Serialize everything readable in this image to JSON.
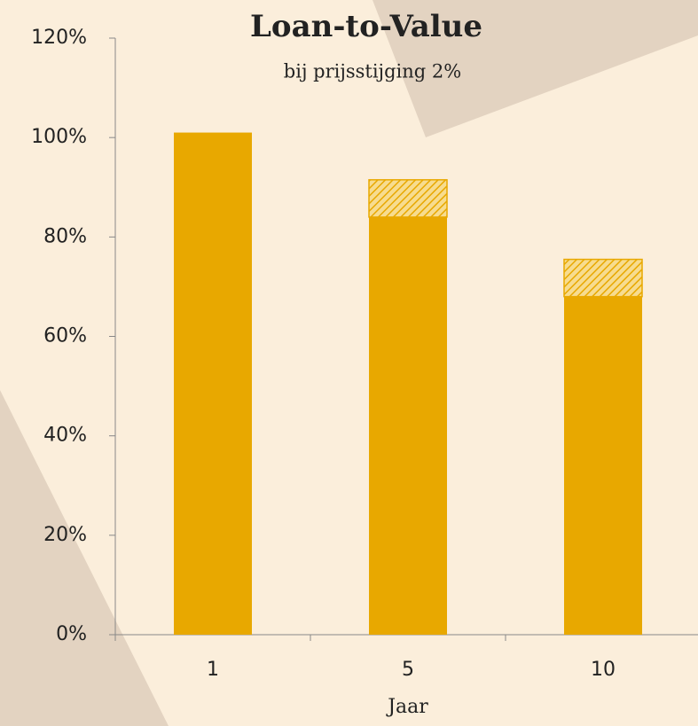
{
  "chart_data": {
    "type": "stacked_bar",
    "title": "Loan-to-Value",
    "subtitle": "bij prijsstijging 2%",
    "x_label": "Jaar",
    "categories": [
      "1",
      "5",
      "10"
    ],
    "series": [
      {
        "color": "#e8a800",
        "values": [
          101,
          84,
          68
        ]
      },
      {
        "color": "#e8a800",
        "pattern": "hatch",
        "values": [
          null,
          7.5,
          7.5
        ]
      }
    ],
    "ylim": [
      0,
      120
    ],
    "yticks": [
      {
        "value": 0,
        "label": "0%"
      },
      {
        "value": 20,
        "label": "20%"
      },
      {
        "value": 40,
        "label": "40%"
      },
      {
        "value": 60,
        "label": "60%"
      },
      {
        "value": 80,
        "label": "80%"
      },
      {
        "value": 100,
        "label": "100%"
      },
      {
        "value": 120,
        "label": "120%"
      }
    ],
    "grid": false
  }
}
